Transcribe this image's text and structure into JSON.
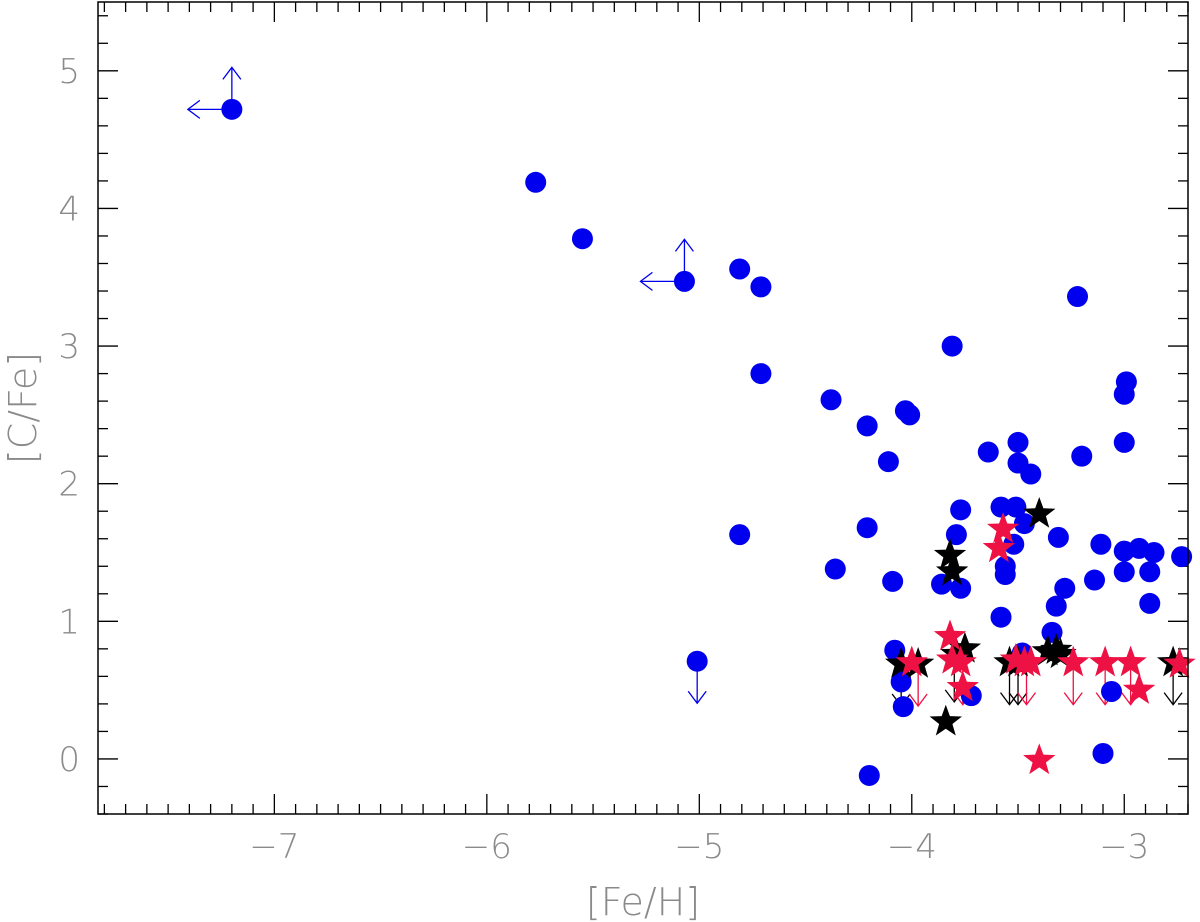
{
  "chart_data": {
    "type": "scatter",
    "xlabel": "[Fe/H]",
    "ylabel": "[C/Fe]",
    "xlim": [
      -7.83,
      -2.7
    ],
    "ylim": [
      -0.4,
      5.5
    ],
    "x_ticks": [
      -7,
      -6,
      -5,
      -4,
      -3
    ],
    "x_tick_labels": [
      "−7",
      "−6",
      "−5",
      "−4",
      "−3"
    ],
    "y_ticks": [
      0,
      1,
      2,
      3,
      4,
      5
    ],
    "y_tick_labels": [
      "0",
      "1",
      "2",
      "3",
      "4",
      "5"
    ],
    "x_minor_step": 0.1,
    "y_minor_step": 0.2,
    "grid": false,
    "colors": {
      "blue": "#0000ee",
      "red": "#ee1144",
      "black": "#000000",
      "axis": "#000000",
      "label": "#8a8a8a"
    },
    "series": [
      {
        "marker": "circle",
        "color": "#0000ee",
        "points": [
          [
            -7.2,
            4.72
          ],
          [
            -5.77,
            4.19
          ],
          [
            -5.55,
            3.78
          ],
          [
            -5.07,
            3.47
          ],
          [
            -4.81,
            3.56
          ],
          [
            -4.71,
            3.43
          ],
          [
            -4.71,
            2.8
          ],
          [
            -4.38,
            2.61
          ],
          [
            -4.03,
            2.53
          ],
          [
            -4.01,
            2.5
          ],
          [
            -4.21,
            2.42
          ],
          [
            -4.11,
            2.16
          ],
          [
            -4.81,
            1.63
          ],
          [
            -4.21,
            1.68
          ],
          [
            -4.36,
            1.38
          ],
          [
            -4.09,
            1.29
          ],
          [
            -3.81,
            3.0
          ],
          [
            -3.64,
            2.23
          ],
          [
            -3.5,
            2.3
          ],
          [
            -3.5,
            2.15
          ],
          [
            -3.44,
            2.07
          ],
          [
            -3.22,
            3.36
          ],
          [
            -3.2,
            2.2
          ],
          [
            -2.99,
            2.74
          ],
          [
            -3.0,
            2.65
          ],
          [
            -3.0,
            2.3
          ],
          [
            -3.58,
            1.83
          ],
          [
            -3.51,
            1.83
          ],
          [
            -3.77,
            1.81
          ],
          [
            -3.47,
            1.71
          ],
          [
            -3.52,
            1.56
          ],
          [
            -3.79,
            1.63
          ],
          [
            -3.31,
            1.61
          ],
          [
            -3.11,
            1.56
          ],
          [
            -3.0,
            1.51
          ],
          [
            -2.93,
            1.53
          ],
          [
            -2.86,
            1.5
          ],
          [
            -2.73,
            1.47
          ],
          [
            -3.56,
            1.4
          ],
          [
            -3.56,
            1.34
          ],
          [
            -3.0,
            1.36
          ],
          [
            -2.88,
            1.36
          ],
          [
            -3.86,
            1.27
          ],
          [
            -3.77,
            1.24
          ],
          [
            -3.28,
            1.24
          ],
          [
            -3.14,
            1.3
          ],
          [
            -3.32,
            1.11
          ],
          [
            -3.58,
            1.03
          ],
          [
            -2.88,
            1.13
          ],
          [
            -3.34,
            0.92
          ],
          [
            -4.08,
            0.79
          ],
          [
            -3.48,
            0.77
          ],
          [
            -4.05,
            0.56
          ],
          [
            -3.72,
            0.46
          ],
          [
            -4.04,
            0.38
          ],
          [
            -3.06,
            0.49
          ],
          [
            -3.1,
            0.04
          ],
          [
            -4.2,
            -0.12
          ],
          [
            -5.01,
            0.71
          ]
        ]
      },
      {
        "marker": "star",
        "color": "#000000",
        "points": [
          [
            -3.4,
            1.78
          ],
          [
            -3.82,
            1.48
          ],
          [
            -3.81,
            1.36
          ],
          [
            -3.75,
            0.8
          ],
          [
            -3.79,
            0.76
          ],
          [
            -4.05,
            0.69
          ],
          [
            -3.97,
            0.69
          ],
          [
            -3.54,
            0.7
          ],
          [
            -3.5,
            0.7
          ],
          [
            -3.36,
            0.78
          ],
          [
            -3.32,
            0.79
          ],
          [
            -3.3,
            0.76
          ],
          [
            -2.77,
            0.7
          ],
          [
            -3.84,
            0.27
          ]
        ]
      },
      {
        "marker": "star",
        "color": "#ee1144",
        "points": [
          [
            -3.59,
            1.53
          ],
          [
            -3.57,
            1.67
          ],
          [
            -3.82,
            0.89
          ],
          [
            -3.81,
            0.72
          ],
          [
            -3.77,
            0.7
          ],
          [
            -3.76,
            0.52
          ],
          [
            -4.0,
            0.7
          ],
          [
            -3.51,
            0.72
          ],
          [
            -3.47,
            0.7
          ],
          [
            -3.44,
            0.7
          ],
          [
            -3.24,
            0.7
          ],
          [
            -3.09,
            0.7
          ],
          [
            -2.97,
            0.7
          ],
          [
            -2.93,
            0.5
          ],
          [
            -2.74,
            0.69
          ],
          [
            -3.4,
            -0.01
          ]
        ]
      }
    ],
    "limit_arrows": [
      {
        "x": -7.2,
        "y": 4.72,
        "dirs": [
          "left",
          "up"
        ],
        "color": "#0000ee"
      },
      {
        "x": -5.07,
        "y": 3.47,
        "dirs": [
          "left",
          "up"
        ],
        "color": "#0000ee"
      },
      {
        "x": -5.01,
        "y": 0.71,
        "dirs": [
          "down"
        ],
        "color": "#0000ee"
      },
      {
        "x": -4.05,
        "y": 0.69,
        "dirs": [
          "down"
        ],
        "color": "#000000"
      },
      {
        "x": -3.97,
        "y": 0.69,
        "dirs": [
          "down"
        ],
        "color": "#ee1144"
      },
      {
        "x": -3.8,
        "y": 0.72,
        "dirs": [
          "down"
        ],
        "color": "#000000"
      },
      {
        "x": -3.76,
        "y": 0.7,
        "dirs": [
          "down"
        ],
        "color": "#ee1144"
      },
      {
        "x": -3.54,
        "y": 0.7,
        "dirs": [
          "down"
        ],
        "color": "#000000"
      },
      {
        "x": -3.5,
        "y": 0.7,
        "dirs": [
          "down"
        ],
        "color": "#000000"
      },
      {
        "x": -3.46,
        "y": 0.7,
        "dirs": [
          "down"
        ],
        "color": "#ee1144"
      },
      {
        "x": -3.24,
        "y": 0.7,
        "dirs": [
          "down"
        ],
        "color": "#ee1144"
      },
      {
        "x": -3.09,
        "y": 0.7,
        "dirs": [
          "down"
        ],
        "color": "#ee1144"
      },
      {
        "x": -2.97,
        "y": 0.7,
        "dirs": [
          "down"
        ],
        "color": "#ee1144"
      },
      {
        "x": -2.77,
        "y": 0.7,
        "dirs": [
          "down"
        ],
        "color": "#000000"
      }
    ]
  }
}
